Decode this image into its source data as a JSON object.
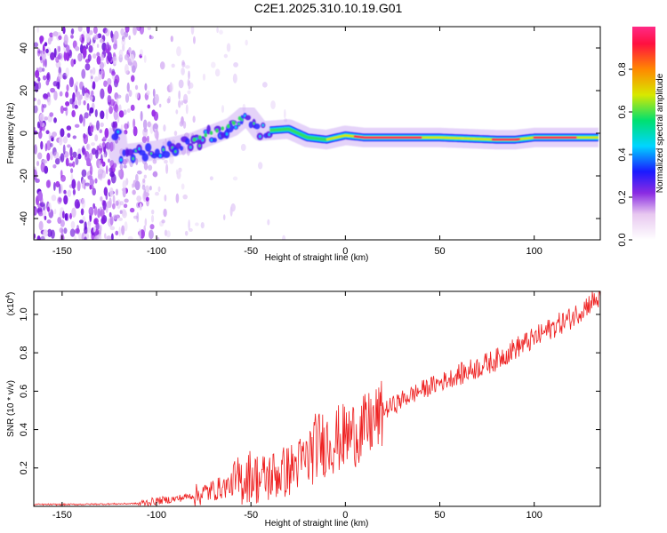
{
  "title": "C2E1.2025.310.10.19.G01",
  "chart_data": [
    {
      "type": "heatmap",
      "xlabel": "Height of straight line (km)",
      "ylabel": "Frequency (Hz)",
      "xlim": [
        -165,
        135
      ],
      "ylim": [
        -50,
        50
      ],
      "xticks": [
        -150,
        -100,
        -50,
        0,
        50,
        100
      ],
      "yticks": [
        -40,
        -20,
        0,
        20,
        40
      ],
      "colorbar": {
        "label": "Normalized spectral amplitude",
        "range": [
          0,
          1
        ],
        "ticks": [
          0.0,
          0.2,
          0.4,
          0.6,
          0.8
        ],
        "colormap": [
          "#ffffff",
          "#e8c8f0",
          "#8a2be2",
          "#1a1aff",
          "#00d5ff",
          "#00e070",
          "#d8e800",
          "#ff8800",
          "#ff1040",
          "#ff2a86"
        ]
      },
      "ridge": [
        {
          "x": -120,
          "freq": -10
        },
        {
          "x": -100,
          "freq": -8
        },
        {
          "x": -80,
          "freq": -4
        },
        {
          "x": -60,
          "freq": 3
        },
        {
          "x": -52,
          "freq": 9
        },
        {
          "x": -45,
          "freq": 1
        },
        {
          "x": -30,
          "freq": 2
        },
        {
          "x": -20,
          "freq": -2
        },
        {
          "x": -10,
          "freq": -3
        },
        {
          "x": 0,
          "freq": -1
        },
        {
          "x": 10,
          "freq": -2
        },
        {
          "x": 50,
          "freq": -2
        },
        {
          "x": 80,
          "freq": -3
        },
        {
          "x": 90,
          "freq": -3
        },
        {
          "x": 100,
          "freq": -2
        },
        {
          "x": 134,
          "freq": -2
        }
      ]
    },
    {
      "type": "line",
      "xlabel": "Height of straight line (km)",
      "ylabel": "SNR (10 * v/v)",
      "y_scale_note": "(x10^4)",
      "y_scale_prefix": "(x10",
      "y_scale_exp": "4",
      "y_scale_suffix": ")",
      "xlim": [
        -165,
        135
      ],
      "ylim": [
        0,
        1.12
      ],
      "xticks": [
        -150,
        -100,
        -50,
        0,
        50,
        100
      ],
      "yticks": [
        0.2,
        0.4,
        0.6,
        0.8,
        1.0
      ],
      "color": "#ee2222",
      "series": [
        {
          "name": "SNR",
          "x": [
            -165,
            -150,
            -130,
            -110,
            -100,
            -90,
            -80,
            -70,
            -60,
            -50,
            -45,
            -40,
            -30,
            -20,
            -15,
            -10,
            0,
            10,
            20,
            30,
            40,
            50,
            60,
            70,
            80,
            90,
            100,
            110,
            120,
            130,
            135
          ],
          "y": [
            0.01,
            0.01,
            0.012,
            0.015,
            0.03,
            0.04,
            0.06,
            0.09,
            0.12,
            0.18,
            0.15,
            0.17,
            0.2,
            0.27,
            0.34,
            0.35,
            0.38,
            0.42,
            0.5,
            0.56,
            0.61,
            0.65,
            0.69,
            0.73,
            0.77,
            0.83,
            0.88,
            0.94,
            0.99,
            1.07,
            1.09
          ]
        }
      ]
    }
  ]
}
